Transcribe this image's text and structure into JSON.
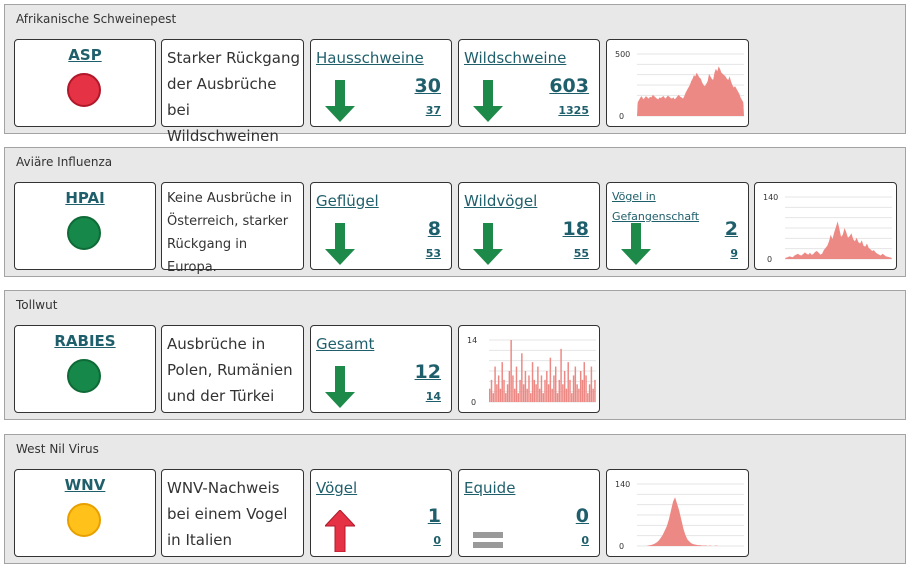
{
  "colors": {
    "trend_down": "#1e8a4a",
    "trend_up": "#e53245",
    "trend_flat": "#9a9a9a",
    "spark_fill": "#ed8984",
    "link": "#1f5f6b"
  },
  "sections": [
    {
      "title": "Afrikanische Schweinepest",
      "code": "ASP",
      "status": "red",
      "description": "Starker Rückgang der Ausbrüche bei Wildschweinen",
      "metrics": [
        {
          "label": "Hausschweine",
          "value": "30",
          "previous": "37",
          "trend": "down",
          "icon": "arrow-down-icon"
        },
        {
          "label": "Wildschweine",
          "value": "603",
          "previous": "1325",
          "trend": "down",
          "icon": "arrow-down-icon"
        }
      ],
      "chart_data": {
        "type": "area",
        "y_max_label": "500",
        "y_min_label": "0",
        "ylim": [
          0,
          500
        ],
        "values": [
          110,
          130,
          150,
          160,
          135,
          145,
          160,
          150,
          140,
          155,
          150,
          170,
          160,
          150,
          140,
          135,
          150,
          145,
          155,
          160,
          140,
          150,
          165,
          155,
          145,
          140,
          150,
          135,
          145,
          160,
          170,
          155,
          150,
          140,
          160,
          190,
          210,
          230,
          250,
          280,
          300,
          330,
          320,
          350,
          330,
          310,
          300,
          270,
          250,
          240,
          260,
          280,
          340,
          320,
          300,
          290,
          350,
          380,
          360,
          400,
          380,
          350,
          340,
          330,
          320,
          300,
          290,
          320,
          280,
          250,
          230,
          240,
          220,
          200,
          180,
          150,
          130,
          110
        ]
      }
    },
    {
      "title": "Aviäre Influenza",
      "code": "HPAI",
      "status": "green",
      "description": "Keine Ausbrüche in Österreich, starker Rückgang in Europa.",
      "metrics": [
        {
          "label": "Geflügel",
          "value": "8",
          "previous": "53",
          "trend": "down",
          "icon": "arrow-down-icon"
        },
        {
          "label": "Wildvögel",
          "value": "18",
          "previous": "55",
          "trend": "down",
          "icon": "arrow-down-icon"
        },
        {
          "label": "Vögel in Gefangenschaft",
          "value": "2",
          "previous": "9",
          "trend": "down",
          "icon": "arrow-down-icon"
        }
      ],
      "chart_data": {
        "type": "area",
        "y_max_label": "140",
        "y_min_label": "0",
        "ylim": [
          0,
          140
        ],
        "values": [
          3,
          4,
          6,
          5,
          4,
          8,
          10,
          12,
          9,
          8,
          11,
          15,
          12,
          10,
          14,
          9,
          12,
          16,
          18,
          14,
          10,
          12,
          20,
          25,
          30,
          40,
          55,
          45,
          60,
          72,
          85,
          68,
          50,
          55,
          70,
          60,
          48,
          52,
          58,
          45,
          40,
          48,
          38,
          35,
          42,
          30,
          28,
          35,
          25,
          22,
          18,
          20,
          15,
          12,
          10,
          8,
          12,
          9,
          6,
          5,
          4,
          3
        ]
      }
    },
    {
      "title": "Tollwut",
      "code": "RABIES",
      "status": "green",
      "description": "Ausbrüche in Polen, Rumänien und der Türkei",
      "metrics": [
        {
          "label": "Gesamt",
          "value": "12",
          "previous": "14",
          "trend": "down",
          "icon": "arrow-down-icon"
        }
      ],
      "chart_data": {
        "type": "bar",
        "y_max_label": "14",
        "y_min_label": "0",
        "ylim": [
          0,
          14
        ],
        "values": [
          3,
          5,
          2,
          8,
          4,
          6,
          3,
          9,
          5,
          2,
          4,
          7,
          14,
          6,
          3,
          8,
          2,
          5,
          11,
          4,
          7,
          3,
          6,
          2,
          9,
          5,
          4,
          8,
          3,
          6,
          2,
          5,
          7,
          4,
          10,
          3,
          6,
          8,
          2,
          5,
          12,
          4,
          7,
          3,
          9,
          5,
          2,
          6,
          8,
          4,
          3,
          7,
          5,
          9,
          6,
          2,
          4,
          8,
          3,
          5
        ]
      }
    },
    {
      "title": "West Nil Virus",
      "code": "WNV",
      "status": "yellow",
      "description": "WNV-Nachweis bei einem Vogel in Italien",
      "metrics": [
        {
          "label": "Vögel",
          "value": "1",
          "previous": "0",
          "trend": "up",
          "icon": "arrow-up-icon"
        },
        {
          "label": "Equide",
          "value": "0",
          "previous": "0",
          "trend": "flat",
          "icon": "equal-icon"
        }
      ],
      "chart_data": {
        "type": "area",
        "y_max_label": "140",
        "y_min_label": "0",
        "ylim": [
          0,
          140
        ],
        "values": [
          0,
          0,
          0,
          0,
          0,
          1,
          2,
          3,
          5,
          8,
          12,
          18,
          25,
          35,
          45,
          60,
          80,
          100,
          110,
          95,
          80,
          60,
          40,
          25,
          15,
          10,
          6,
          4,
          3,
          2,
          2,
          1,
          1,
          1,
          0,
          1,
          0,
          0,
          1,
          0,
          0,
          0,
          0,
          0,
          0,
          0,
          0,
          0,
          0,
          0,
          0,
          0
        ]
      }
    }
  ]
}
